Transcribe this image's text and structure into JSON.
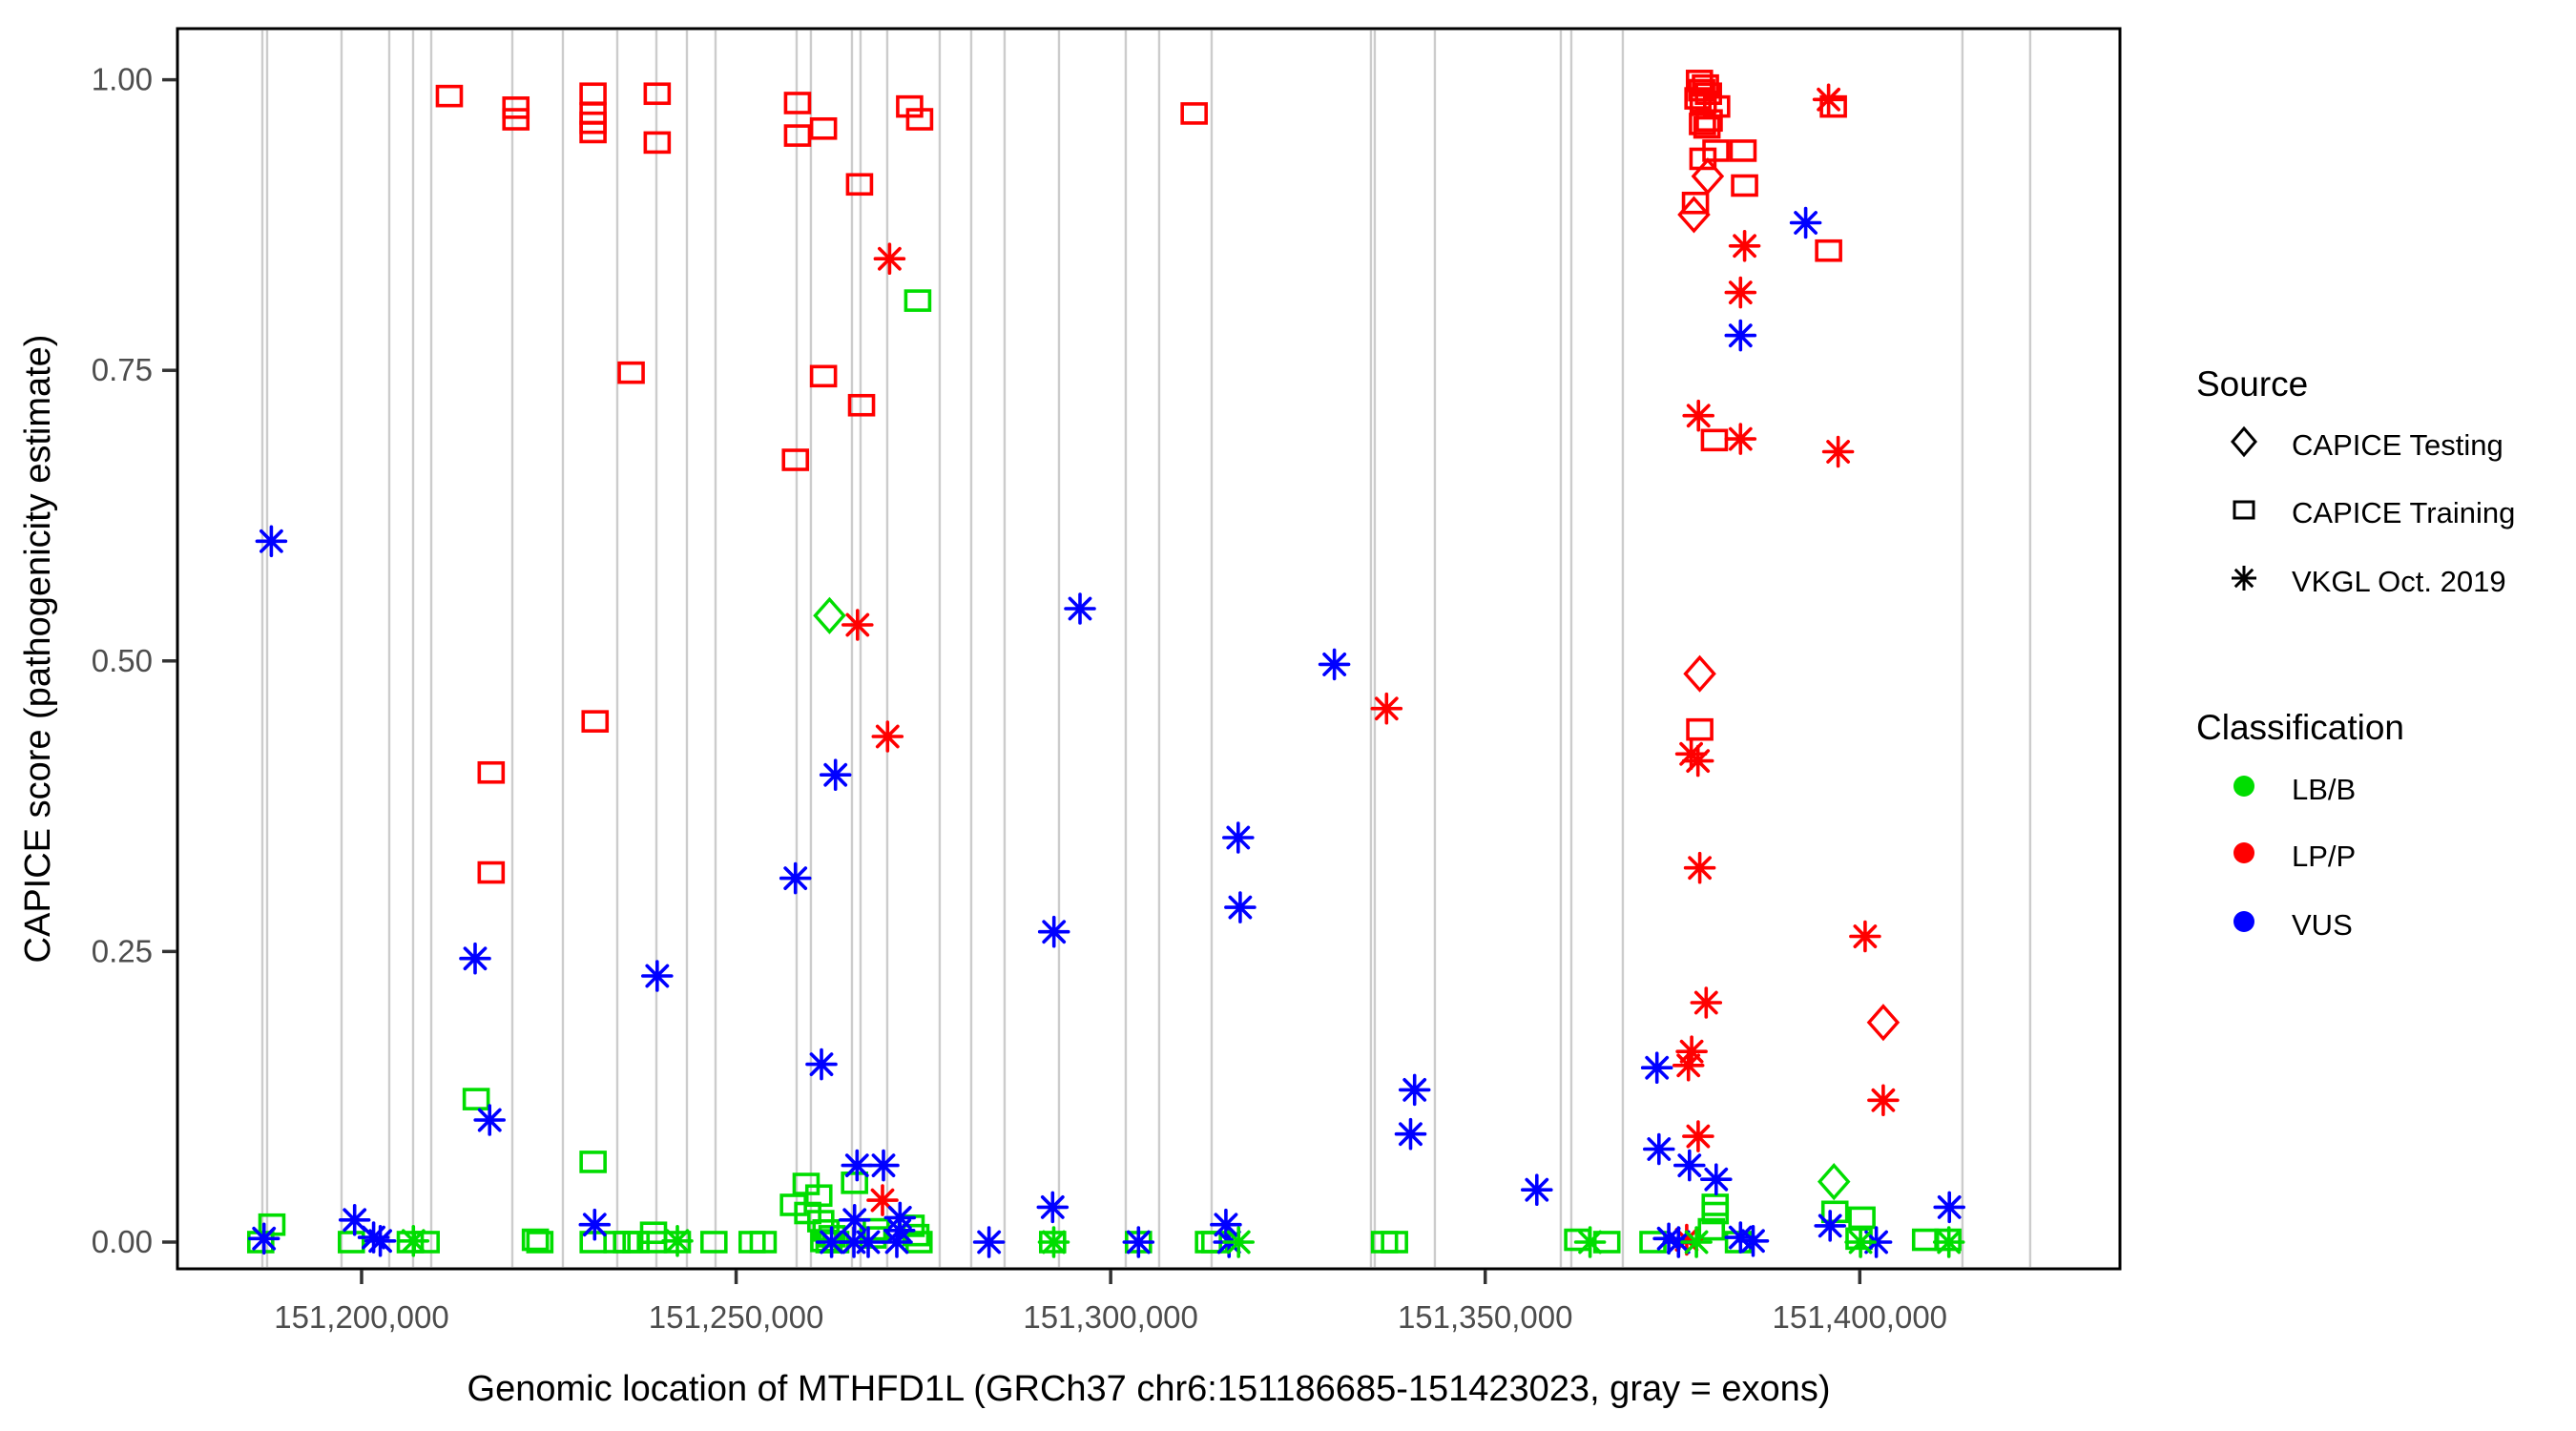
{
  "figure": {
    "xlabel": "Genomic location of MTHFD1L (GRCh37 chr6:151186685-151423023, gray = exons)",
    "ylabel": "CAPICE score (pathogenicity estimate)"
  },
  "legend": {
    "source": {
      "title": "Source",
      "items": [
        {
          "label": "CAPICE Testing",
          "marker": "diamond"
        },
        {
          "label": "CAPICE Training",
          "marker": "square"
        },
        {
          "label": "VKGL Oct. 2019",
          "marker": "asterisk"
        }
      ]
    },
    "classification": {
      "title": "Classification",
      "items": [
        {
          "label": "LB/B",
          "color": "#00DD00"
        },
        {
          "label": "LP/P",
          "color": "#FF0000"
        },
        {
          "label": "VUS",
          "color": "#0000FF"
        }
      ]
    }
  },
  "chart_data": {
    "type": "scatter",
    "title": "",
    "xlabel": "Genomic location of MTHFD1L (GRCh37 chr6:151186685-151423023, gray = exons)",
    "ylabel": "CAPICE score (pathogenicity estimate)",
    "x_domain": [
      151175420,
      151434734
    ],
    "y_domain": [
      -0.023,
      1.044
    ],
    "grid": "off",
    "x_ticks": [
      {
        "value": 151200000,
        "label": "151,200,000"
      },
      {
        "value": 151250000,
        "label": "151,250,000"
      },
      {
        "value": 151300000,
        "label": "151,300,000"
      },
      {
        "value": 151350000,
        "label": "151,350,000"
      },
      {
        "value": 151400000,
        "label": "151,400,000"
      }
    ],
    "y_ticks": [
      {
        "value": 0.0,
        "label": "0.00"
      },
      {
        "value": 0.25,
        "label": "0.25"
      },
      {
        "value": 0.5,
        "label": "0.50"
      },
      {
        "value": 0.75,
        "label": "0.75"
      },
      {
        "value": 1.0,
        "label": "1.00"
      }
    ],
    "colors": {
      "LB/B": "#00DD00",
      "LP/P": "#FF0000",
      "VUS": "#0000FF",
      "exon": "#CCCCCC"
    },
    "exon_lines": [
      151186755,
      151187392,
      151197325,
      151203693,
      151206877,
      151209297,
      151220122,
      151226872,
      151234132,
      151239354,
      151243429,
      151247250,
      151258075,
      151259985,
      151265462,
      151266608,
      151270174,
      151277179,
      151281382,
      151285840,
      151293100,
      151302015,
      151306472,
      151313477,
      151334746,
      151335255,
      151343279,
      151360091,
      151361492,
      151368369,
      151413706,
      151422748
    ],
    "series": [
      {
        "name": "CAPICE Testing LP/P",
        "source": "CAPICE Testing",
        "classification": "LP/P",
        "marker": "diamond",
        "color": "#FF0000",
        "points": [
          [
            151379700,
            0.917
          ],
          [
            151377862,
            0.884
          ],
          [
            151378640,
            0.489
          ],
          [
            151403139,
            0.189
          ]
        ]
      },
      {
        "name": "CAPICE Testing LB/B",
        "source": "CAPICE Testing",
        "classification": "LB/B",
        "marker": "diamond",
        "color": "#00DD00",
        "points": [
          [
            151262465,
            0.539
          ],
          [
            151396553,
            0.052
          ]
        ]
      },
      {
        "name": "CAPICE Training LP/P",
        "source": "CAPICE Training",
        "classification": "LP/P",
        "marker": "square",
        "color": "#FF0000",
        "points": [
          [
            151211716,
            0.986
          ],
          [
            151220600,
            0.976
          ],
          [
            151220600,
            0.966
          ],
          [
            151230900,
            0.988
          ],
          [
            151230900,
            0.971
          ],
          [
            151230900,
            0.963
          ],
          [
            151230900,
            0.955
          ],
          [
            151239465,
            0.988
          ],
          [
            151239465,
            0.946
          ],
          [
            151258198,
            0.98
          ],
          [
            151258198,
            0.952
          ],
          [
            151261662,
            0.958
          ],
          [
            151273161,
            0.977
          ],
          [
            151274498,
            0.966
          ],
          [
            151266476,
            0.91
          ],
          [
            151235989,
            0.748
          ],
          [
            151261662,
            0.745
          ],
          [
            151266744,
            0.72
          ],
          [
            151257918,
            0.673
          ],
          [
            151217300,
            0.404
          ],
          [
            151217300,
            0.318
          ],
          [
            151231174,
            0.448
          ],
          [
            151311147,
            0.971
          ],
          [
            151378600,
            0.999
          ],
          [
            151379400,
            0.995
          ],
          [
            151378900,
            0.991
          ],
          [
            151379800,
            0.988
          ],
          [
            151378400,
            0.984
          ],
          [
            151379100,
            0.981
          ],
          [
            151380900,
            0.977
          ],
          [
            151379900,
            0.965
          ],
          [
            151379000,
            0.962
          ],
          [
            151379600,
            0.959
          ],
          [
            151396477,
            0.977
          ],
          [
            151380800,
            0.939
          ],
          [
            151384420,
            0.939
          ],
          [
            151379064,
            0.932
          ],
          [
            151384624,
            0.909
          ],
          [
            151378066,
            0.894
          ],
          [
            151395841,
            0.853
          ],
          [
            151380596,
            0.69
          ],
          [
            151378640,
            0.441
          ]
        ]
      },
      {
        "name": "CAPICE Training LB/B",
        "source": "CAPICE Training",
        "classification": "LB/B",
        "marker": "square",
        "color": "#00DD00",
        "points": [
          [
            151274243,
            0.81
          ],
          [
            151215300,
            0.123
          ],
          [
            151230906,
            0.069
          ],
          [
            151186537,
            0.0
          ],
          [
            151188027,
            0.015
          ],
          [
            151198637,
            0.0
          ],
          [
            151206500,
            0.0
          ],
          [
            151208623,
            0.0
          ],
          [
            151223200,
            0.002
          ],
          [
            151223800,
            0.0
          ],
          [
            151230914,
            0.0
          ],
          [
            151234098,
            0.0
          ],
          [
            151235371,
            0.0
          ],
          [
            151236645,
            0.0
          ],
          [
            151238975,
            0.008
          ],
          [
            151238975,
            0.0
          ],
          [
            151242159,
            0.0
          ],
          [
            151247036,
            0.0
          ],
          [
            151252130,
            0.0
          ],
          [
            151253616,
            0.0
          ],
          [
            151259347,
            0.05
          ],
          [
            151261041,
            0.04
          ],
          [
            151257653,
            0.032
          ],
          [
            151259563,
            0.025
          ],
          [
            151261300,
            0.018
          ],
          [
            151262000,
            0.01
          ],
          [
            151262800,
            0.005
          ],
          [
            151261700,
            0.001
          ],
          [
            151263300,
            0.0
          ],
          [
            151262400,
            0.0
          ],
          [
            151265808,
            0.051
          ],
          [
            151268266,
            0.004
          ],
          [
            151268700,
            0.011
          ],
          [
            151273358,
            0.014
          ],
          [
            151273995,
            0.006
          ],
          [
            151274415,
            0.0
          ],
          [
            151292249,
            0.0
          ],
          [
            151303713,
            0.0
          ],
          [
            151313057,
            0.0
          ],
          [
            151313900,
            0.0
          ],
          [
            151336556,
            0.0
          ],
          [
            151337894,
            0.0
          ],
          [
            151362340,
            0.002
          ],
          [
            151366239,
            0.0
          ],
          [
            151372391,
            0.0
          ],
          [
            151380700,
            0.032
          ],
          [
            151380700,
            0.025
          ],
          [
            151380192,
            0.011
          ],
          [
            151383800,
            0.0
          ],
          [
            151396680,
            0.026
          ],
          [
            151400294,
            0.021
          ],
          [
            151399900,
            0.003
          ],
          [
            151408781,
            0.002
          ],
          [
            151411761,
            0.002
          ]
        ]
      },
      {
        "name": "VKGL Oct. 2019 LP/P",
        "source": "VKGL Oct. 2019",
        "classification": "LP/P",
        "marker": "asterisk",
        "color": "#FF0000",
        "points": [
          [
            151270487,
            0.846
          ],
          [
            151266209,
            0.531
          ],
          [
            151270220,
            0.435
          ],
          [
            151395841,
            0.983
          ],
          [
            151384624,
            0.857
          ],
          [
            151384076,
            0.817
          ],
          [
            151378470,
            0.711
          ],
          [
            151384076,
            0.691
          ],
          [
            151397114,
            0.68
          ],
          [
            151336824,
            0.459
          ],
          [
            151377500,
            0.42
          ],
          [
            151378400,
            0.414
          ],
          [
            151378640,
            0.322
          ],
          [
            151400719,
            0.263
          ],
          [
            151379495,
            0.206
          ],
          [
            151377556,
            0.164
          ],
          [
            151377131,
            0.152
          ],
          [
            151403139,
            0.122
          ],
          [
            151378429,
            0.091
          ],
          [
            151269539,
            0.036
          ],
          [
            151376900,
            0.002
          ]
        ]
      },
      {
        "name": "VKGL Oct. 2019 VUS",
        "source": "VKGL Oct. 2019",
        "classification": "VUS",
        "marker": "asterisk",
        "color": "#0000FF",
        "points": [
          [
            151187950,
            0.603
          ],
          [
            151215154,
            0.244
          ],
          [
            151217100,
            0.105
          ],
          [
            151263267,
            0.402
          ],
          [
            151257918,
            0.313
          ],
          [
            151239465,
            0.229
          ],
          [
            151261395,
            0.153
          ],
          [
            151295903,
            0.545
          ],
          [
            151329868,
            0.497
          ],
          [
            151317026,
            0.348
          ],
          [
            151317294,
            0.288
          ],
          [
            151292427,
            0.267
          ],
          [
            151392785,
            0.877
          ],
          [
            151384076,
            0.78
          ],
          [
            151340568,
            0.131
          ],
          [
            151340033,
            0.093
          ],
          [
            151372926,
            0.15
          ],
          [
            151373193,
            0.08
          ],
          [
            151356884,
            0.045
          ],
          [
            151186970,
            0.003
          ],
          [
            151199070,
            0.019
          ],
          [
            151201600,
            0.004
          ],
          [
            151202500,
            0.001
          ],
          [
            151231118,
            0.015
          ],
          [
            151266139,
            0.066
          ],
          [
            151269666,
            0.066
          ],
          [
            151265808,
            0.019
          ],
          [
            151271870,
            0.021
          ],
          [
            151271800,
            0.01
          ],
          [
            151262745,
            0.0
          ],
          [
            151265719,
            0.0
          ],
          [
            151267629,
            0.0
          ],
          [
            151271450,
            0.0
          ],
          [
            151283762,
            0.0
          ],
          [
            151292249,
            0.03
          ],
          [
            151303713,
            0.0
          ],
          [
            151315387,
            0.015
          ],
          [
            151315807,
            0.0
          ],
          [
            151374500,
            0.003
          ],
          [
            151375800,
            0.0
          ],
          [
            151377263,
            0.066
          ],
          [
            151380829,
            0.054
          ],
          [
            151384076,
            0.004
          ],
          [
            151385763,
            0.001
          ],
          [
            151396046,
            0.014
          ],
          [
            151402209,
            0.0
          ],
          [
            151411965,
            0.03
          ]
        ]
      },
      {
        "name": "VKGL Oct. 2019 LB/B",
        "source": "VKGL Oct. 2019",
        "classification": "LB/B",
        "marker": "asterisk",
        "color": "#00DD00",
        "points": [
          [
            151206916,
            0.001
          ],
          [
            151242159,
            0.001
          ],
          [
            151292400,
            0.0
          ],
          [
            151317081,
            0.0
          ],
          [
            151364000,
            0.0
          ],
          [
            151378200,
            0.0
          ],
          [
            151400100,
            0.0
          ],
          [
            151411900,
            0.0
          ]
        ]
      }
    ]
  }
}
